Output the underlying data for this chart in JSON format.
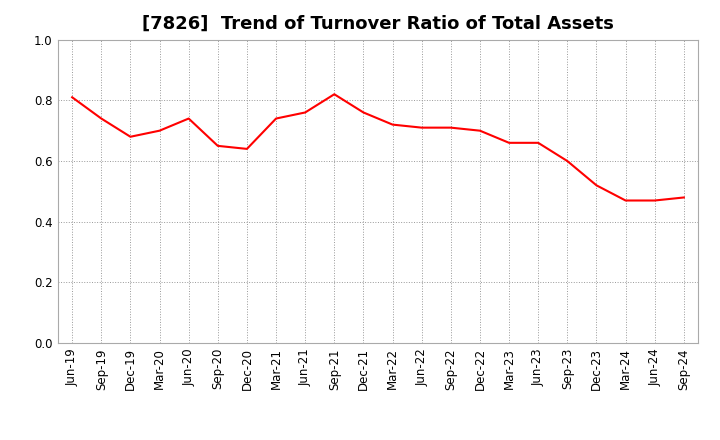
{
  "title": "[7826]  Trend of Turnover Ratio of Total Assets",
  "x_labels": [
    "Jun-19",
    "Sep-19",
    "Dec-19",
    "Mar-20",
    "Jun-20",
    "Sep-20",
    "Dec-20",
    "Mar-21",
    "Jun-21",
    "Sep-21",
    "Dec-21",
    "Mar-22",
    "Jun-22",
    "Sep-22",
    "Dec-22",
    "Mar-23",
    "Jun-23",
    "Sep-23",
    "Dec-23",
    "Mar-24",
    "Jun-24",
    "Sep-24"
  ],
  "y_values": [
    0.81,
    0.74,
    0.68,
    0.7,
    0.74,
    0.65,
    0.64,
    0.74,
    0.76,
    0.82,
    0.76,
    0.72,
    0.71,
    0.71,
    0.7,
    0.66,
    0.66,
    0.6,
    0.52,
    0.47,
    0.47,
    0.48
  ],
  "line_color": "#ff0000",
  "ylim": [
    0.0,
    1.0
  ],
  "yticks": [
    0.0,
    0.2,
    0.4,
    0.6,
    0.8,
    1.0
  ],
  "title_fontsize": 13,
  "tick_fontsize": 8.5,
  "background_color": "#ffffff",
  "grid_color": "#999999",
  "line_width": 1.5,
  "spine_color": "#aaaaaa"
}
